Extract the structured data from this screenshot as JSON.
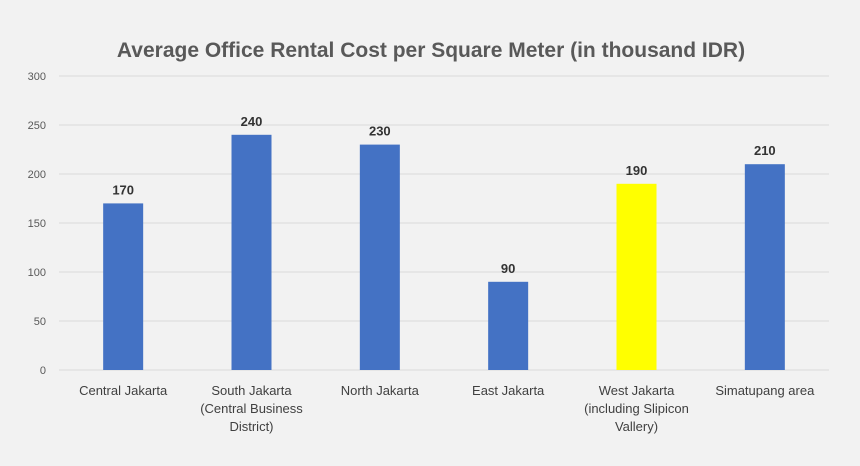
{
  "chart_data": {
    "type": "bar",
    "title": "Average Office Rental Cost per Square Meter  (in thousand IDR)",
    "xlabel": "",
    "ylabel": "",
    "ylim": [
      0,
      300
    ],
    "yticks": [
      0,
      50,
      100,
      150,
      200,
      250,
      300
    ],
    "grid": true,
    "categories": [
      [
        "Central Jakarta"
      ],
      [
        "South Jakarta",
        "(Central Business",
        "District)"
      ],
      [
        "North Jakarta"
      ],
      [
        "East Jakarta"
      ],
      [
        "West Jakarta",
        "(including Slipicon",
        "Vallery)"
      ],
      [
        "Simatupang area"
      ]
    ],
    "values": [
      170,
      240,
      230,
      90,
      190,
      210
    ],
    "data_labels": [
      "170",
      "240",
      "230",
      "90",
      "190",
      "210"
    ],
    "colors": [
      "#4472c4",
      "#4472c4",
      "#4472c4",
      "#4472c4",
      "#ffff00",
      "#4472c4"
    ]
  }
}
